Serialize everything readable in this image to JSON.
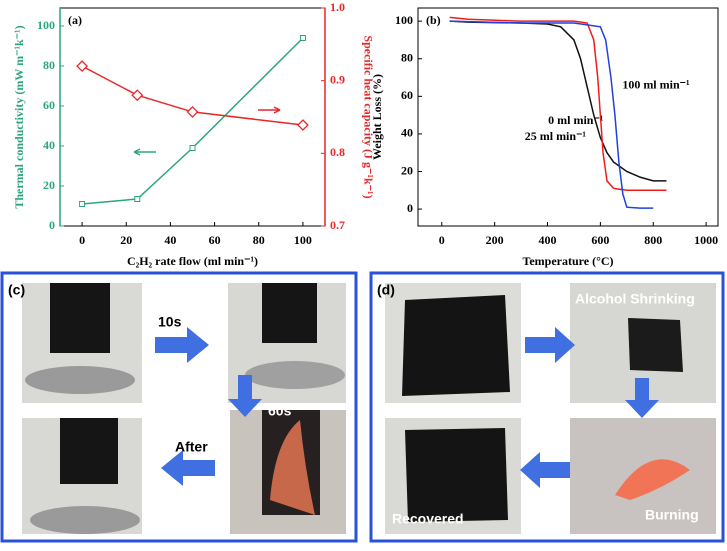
{
  "chart_data": [
    {
      "type": "line",
      "panel_label": "(a)",
      "x_label": "C₂H₂ rate flow (ml min⁻¹)",
      "y_label": "Thermal conductivity (mW m⁻¹k⁻¹)",
      "y2_label": "Specific heat capacity (J g⁻¹k⁻¹)",
      "x": [
        0,
        25,
        50,
        100
      ],
      "series": [
        {
          "color": "#2ca57a",
          "marker": "square",
          "values": [
            11,
            13.5,
            39,
            94
          ]
        },
        {
          "color": "#e8272a",
          "marker": "diamond",
          "axis": "y2",
          "values": [
            0.92,
            0.88,
            0.857,
            0.839
          ]
        }
      ],
      "xlim": [
        -10,
        110
      ],
      "xticks": [
        0,
        20,
        40,
        60,
        80,
        100
      ],
      "ylim": [
        0,
        109
      ],
      "yticks": [
        0,
        20,
        40,
        60,
        80,
        100
      ],
      "y2lim": [
        0.7,
        1.0
      ],
      "y2ticks": [
        0.7,
        0.8,
        0.9,
        {
          "value": 1,
          "label": "1.0"
        }
      ]
    },
    {
      "type": "line",
      "panel_label": "(b)",
      "x_label": "Temperature (°C)",
      "y_label": "Weight Loss (%)",
      "series": [
        {
          "name": "0 ml min⁻¹",
          "color": "#111111",
          "x": [
            30,
            100,
            300,
            400,
            450,
            500,
            525,
            550,
            575,
            600,
            625,
            650,
            700,
            750,
            800,
            850
          ],
          "values": [
            100,
            99.5,
            99,
            98.5,
            97,
            90,
            80,
            65,
            50,
            38,
            30,
            25,
            20,
            17,
            15,
            15
          ]
        },
        {
          "name": "25 ml min⁻¹",
          "color": "#ee1c1c",
          "x": [
            30,
            100,
            300,
            500,
            550,
            575,
            590,
            600,
            610,
            625,
            650,
            700,
            750,
            800,
            850
          ],
          "values": [
            102,
            101,
            100,
            100,
            99,
            90,
            70,
            50,
            30,
            15,
            11,
            10,
            10,
            10,
            10
          ]
        },
        {
          "name": "100 ml min⁻¹",
          "color": "#2040e0",
          "x": [
            30,
            300,
            500,
            550,
            600,
            620,
            640,
            655,
            670,
            685,
            700,
            750,
            800
          ],
          "values": [
            100,
            99,
            99,
            98,
            97,
            90,
            70,
            50,
            25,
            8,
            1,
            0.5,
            0.5
          ]
        }
      ],
      "xlim": [
        -90,
        1045
      ],
      "xticks": [
        0,
        200,
        400,
        600,
        800,
        1000
      ],
      "ylim": [
        -9,
        107
      ],
      "yticks": [
        0,
        20,
        40,
        60,
        80,
        100
      ]
    }
  ],
  "panels": {
    "c": {
      "label": "(c)",
      "step1": "10s",
      "step2": "60s",
      "step3": "After"
    },
    "d": {
      "label": "(d)",
      "step1": "Alcohol Shrinking",
      "step2": "Burning",
      "step3": "Recovered"
    }
  }
}
